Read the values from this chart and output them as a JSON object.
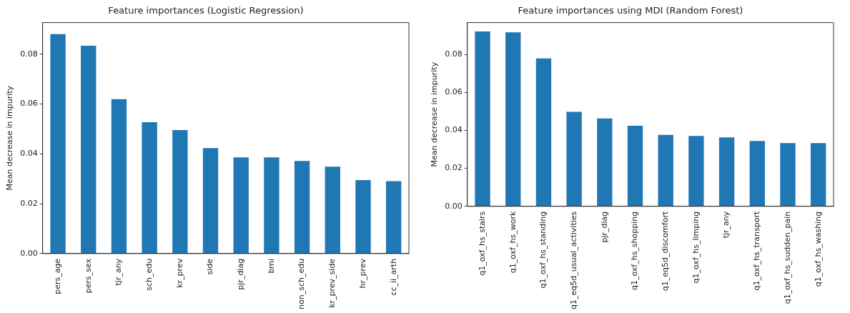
{
  "chart_data": [
    {
      "type": "bar",
      "title": "Feature importances (Logistic Regression)",
      "ylabel": "Mean decrease in impurity",
      "categories": [
        "pers_age",
        "pers_sex",
        "tjr_any",
        "sch_edu",
        "kr_prev",
        "side",
        "pjr_diag",
        "bmi",
        "non_sch_edu",
        "kr_prev_side",
        "hr_prev",
        "cc_ii_arth"
      ],
      "values": [
        0.0881,
        0.0834,
        0.062,
        0.0527,
        0.0496,
        0.0423,
        0.0386,
        0.0386,
        0.0372,
        0.0349,
        0.0295,
        0.0291
      ],
      "color": "#1f77b4",
      "ylim": [
        0,
        0.0927
      ],
      "yticks": [
        {
          "value": 0,
          "label": "0.00"
        },
        {
          "value": 0.02,
          "label": "0.02"
        },
        {
          "value": 0.04,
          "label": "0.04"
        },
        {
          "value": 0.06,
          "label": "0.06"
        },
        {
          "value": 0.08,
          "label": "0.08"
        }
      ],
      "grid": false,
      "legend": false
    },
    {
      "type": "bar",
      "title": "Feature importances using MDI (Random Forest)",
      "ylabel": "Mean decrease in impurity",
      "categories": [
        "q1_oxf_hs_stairs",
        "q1_oxf_hs_work",
        "q1_oxf_hs_standing",
        "q1_eq5d_usual_activities",
        "pjr_diag",
        "q1_oxf_hs_shopping",
        "q1_eq5d_discomfort",
        "q1_oxf_hs_limping",
        "tjr_any",
        "q1_oxf_hs_transport",
        "q1_oxf_hs_sudden_pain",
        "q1_oxf_hs_washing"
      ],
      "values": [
        0.0921,
        0.0917,
        0.0779,
        0.0498,
        0.0463,
        0.0424,
        0.0376,
        0.0371,
        0.0363,
        0.0344,
        0.0333,
        0.0333
      ],
      "color": "#1f77b4",
      "ylim": [
        0,
        0.0968
      ],
      "yticks": [
        {
          "value": 0,
          "label": "0.00"
        },
        {
          "value": 0.02,
          "label": "0.02"
        },
        {
          "value": 0.04,
          "label": "0.04"
        },
        {
          "value": 0.06,
          "label": "0.06"
        },
        {
          "value": 0.08,
          "label": "0.08"
        }
      ],
      "grid": false,
      "legend": false
    }
  ]
}
